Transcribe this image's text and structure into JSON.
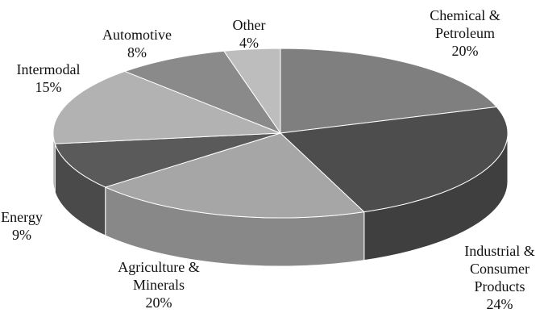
{
  "chart_data": {
    "type": "pie3d",
    "categories": [
      "Chemical & Petroleum",
      "Industrial & Consumer Products",
      "Agriculture & Minerals",
      "Energy",
      "Intermodal",
      "Automotive",
      "Other"
    ],
    "values": [
      20,
      24,
      20,
      9,
      15,
      8,
      4
    ],
    "value_labels": [
      "20%",
      "24%",
      "20%",
      "9%",
      "15%",
      "8%",
      "4%"
    ],
    "colors": [
      "#7f7f7f",
      "#4d4d4d",
      "#a6a6a6",
      "#5a5a5a",
      "#b2b2b2",
      "#8a8a8a",
      "#bdbdbd"
    ]
  }
}
